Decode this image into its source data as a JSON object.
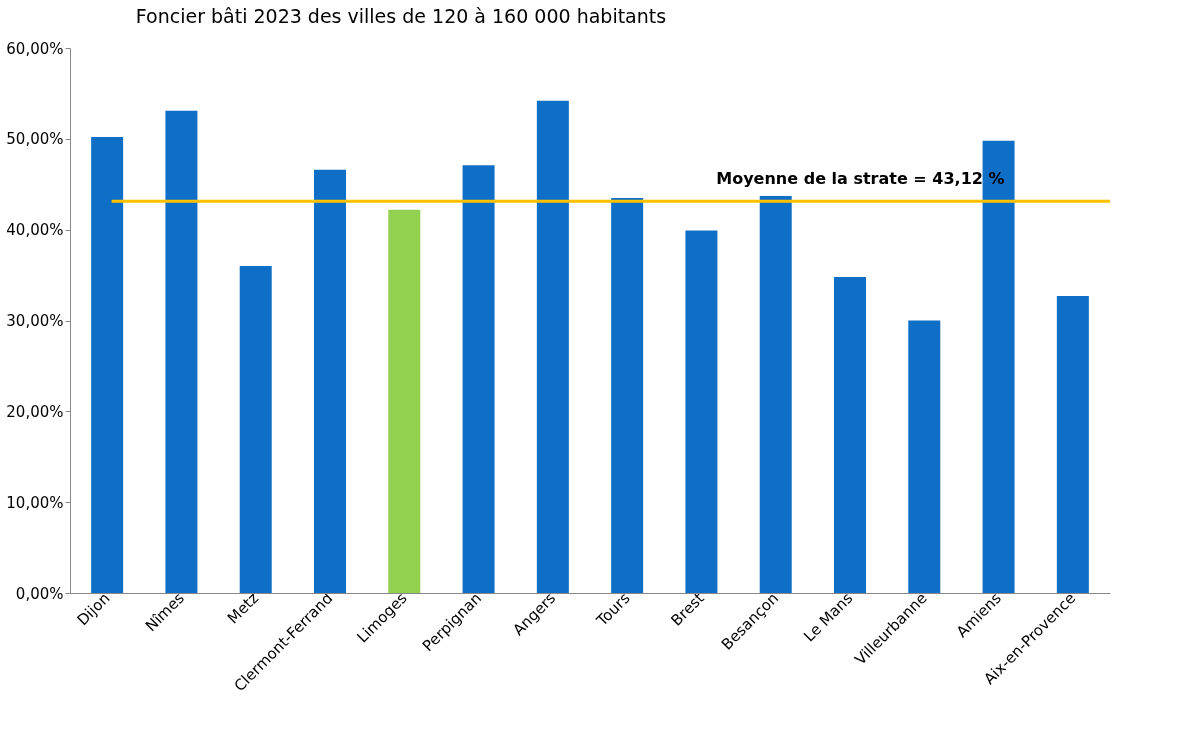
{
  "chart_data": {
    "type": "bar",
    "title": "Foncier bâti 2023 des villes de 120 à 160 000 habitants",
    "categories": [
      "Dijon",
      "Nîmes",
      "Metz",
      "Clermont-Ferrand",
      "Limoges",
      "Perpignan",
      "Angers",
      "Tours",
      "Brest",
      "Besançon",
      "Le Mans",
      "Villeurbanne",
      "Amiens",
      "Aix-en-Provence"
    ],
    "values": [
      50.2,
      53.1,
      36.0,
      46.6,
      42.2,
      47.1,
      54.2,
      43.5,
      39.9,
      43.7,
      34.8,
      30.0,
      49.8,
      32.7
    ],
    "colors": [
      "#0f6fc6",
      "#0f6fc6",
      "#0f6fc6",
      "#0f6fc6",
      "#92d050",
      "#0f6fc6",
      "#0f6fc6",
      "#0f6fc6",
      "#0f6fc6",
      "#0f6fc6",
      "#0f6fc6",
      "#0f6fc6",
      "#0f6fc6",
      "#0f6fc6"
    ],
    "ylim": [
      0,
      60
    ],
    "yticks": [
      {
        "value": 0,
        "label": "0,00%"
      },
      {
        "value": 10,
        "label": "10,00%"
      },
      {
        "value": 20,
        "label": "20,00%"
      },
      {
        "value": 30,
        "label": "30,00%"
      },
      {
        "value": 40,
        "label": "40,00%"
      },
      {
        "value": 50,
        "label": "50,00%"
      },
      {
        "value": 60,
        "label": "60,00%"
      }
    ],
    "ref_lines": [
      {
        "axis": "y",
        "value": 43.12,
        "label": "Moyenne de la strate = 43,12 %",
        "color": "#ffc000"
      }
    ],
    "grid": false
  }
}
